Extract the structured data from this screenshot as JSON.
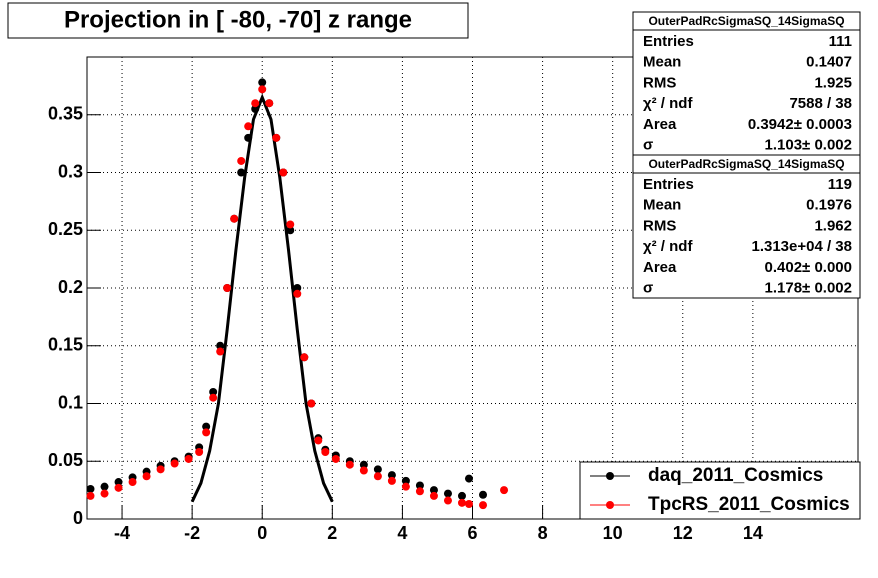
{
  "chart_data": {
    "type": "scatter",
    "title": "Projection in [ -80, -70] z range",
    "xlim": [
      -5,
      17
    ],
    "ylim": [
      0,
      0.4
    ],
    "xticks": [
      -4,
      -2,
      0,
      2,
      4,
      6,
      8,
      10,
      12,
      14
    ],
    "yticks": [
      0,
      0.05,
      0.1,
      0.15,
      0.2,
      0.25,
      0.3,
      0.35
    ],
    "grid": true,
    "legend": "bottom-right",
    "x": [
      -4.9,
      -4.5,
      -4.1,
      -3.7,
      -3.3,
      -2.9,
      -2.5,
      -2.1,
      -1.8,
      -1.6,
      -1.4,
      -1.2,
      -1.0,
      -0.8,
      -0.6,
      -0.4,
      -0.2,
      0,
      0.2,
      0.4,
      0.6,
      0.8,
      1.0,
      1.2,
      1.4,
      1.6,
      1.8,
      2.1,
      2.5,
      2.9,
      3.3,
      3.7,
      4.1,
      4.5,
      4.9,
      5.3,
      5.7,
      5.9,
      6.3,
      6.9
    ],
    "series": [
      {
        "name": "daq_2011_Cosmics",
        "color": "#000000",
        "values": [
          0.026,
          0.028,
          0.032,
          0.036,
          0.041,
          0.046,
          0.05,
          0.054,
          0.062,
          0.08,
          0.11,
          0.15,
          0.2,
          0.26,
          0.3,
          0.33,
          0.355,
          0.378,
          0.36,
          0.33,
          0.3,
          0.25,
          0.2,
          0.14,
          0.1,
          0.07,
          0.06,
          0.055,
          0.05,
          0.047,
          0.043,
          0.038,
          0.033,
          0.029,
          0.025,
          0.022,
          0.02,
          0.035,
          0.021,
          null
        ]
      },
      {
        "name": "TpcRS_2011_Cosmics",
        "color": "#ff0000",
        "values": [
          0.02,
          0.022,
          0.027,
          0.032,
          0.037,
          0.043,
          0.048,
          0.052,
          0.058,
          0.075,
          0.105,
          0.145,
          0.2,
          0.26,
          0.31,
          0.34,
          0.36,
          0.372,
          0.36,
          0.33,
          0.3,
          0.255,
          0.195,
          0.14,
          0.1,
          0.068,
          0.058,
          0.052,
          0.047,
          0.042,
          0.037,
          0.033,
          0.028,
          0.024,
          0.02,
          0.016,
          0.014,
          0.013,
          0.012,
          0.025
        ]
      }
    ],
    "fit": {
      "color": "#000000",
      "x": [
        -2,
        -1.75,
        -1.5,
        -1.25,
        -1,
        -0.75,
        -0.5,
        -0.25,
        0,
        0.25,
        0.5,
        0.75,
        1,
        1.25,
        1.5,
        1.75,
        2
      ],
      "values": [
        0.015,
        0.031,
        0.059,
        0.1,
        0.164,
        0.233,
        0.296,
        0.346,
        0.365,
        0.346,
        0.296,
        0.233,
        0.164,
        0.1,
        0.059,
        0.031,
        0.015
      ]
    },
    "stat_boxes": [
      {
        "title": "OuterPadRcSigmaSQ_14SigmaSQ",
        "rows": [
          [
            "Entries",
            "111"
          ],
          [
            "Mean",
            "0.1407"
          ],
          [
            "RMS",
            "1.925"
          ],
          [
            "χ² / ndf",
            "7588 / 38"
          ],
          [
            "Area",
            "0.3942± 0.0003"
          ],
          [
            "σ",
            "1.103± 0.002"
          ]
        ]
      },
      {
        "title": "OuterPadRcSigmaSQ_14SigmaSQ",
        "rows": [
          [
            "Entries",
            "119"
          ],
          [
            "Mean",
            "0.1976"
          ],
          [
            "RMS",
            "1.962"
          ],
          [
            "χ² / ndf",
            "1.313e+04 / 38"
          ],
          [
            "Area",
            "0.402± 0.000"
          ],
          [
            "σ",
            "1.178± 0.002"
          ]
        ]
      }
    ]
  }
}
